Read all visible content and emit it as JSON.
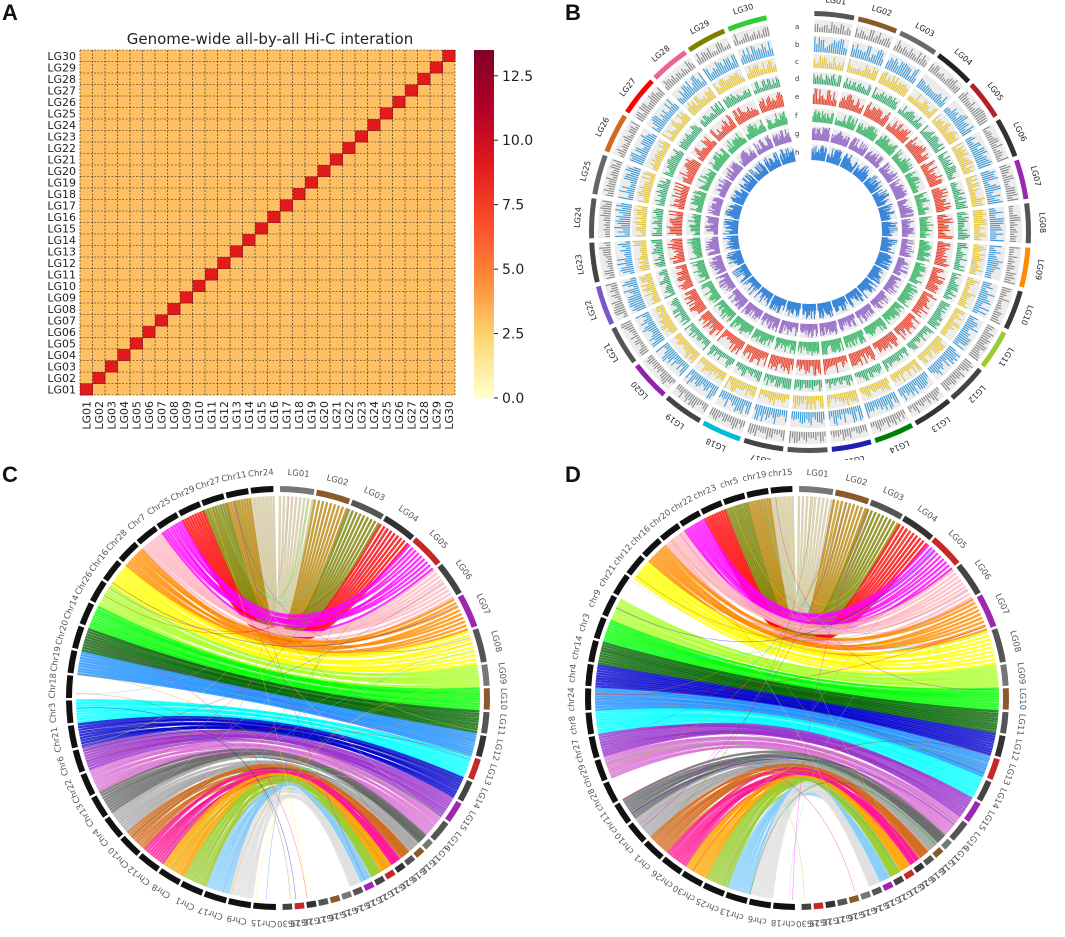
{
  "panels": {
    "A": "A",
    "B": "B",
    "C": "C",
    "D": "D"
  },
  "chart_data": [
    {
      "panel": "A",
      "type": "heatmap",
      "title": "Genome-wide all-by-all Hi-C interation",
      "x_categories": [
        "LG01",
        "LG02",
        "LG03",
        "LG04",
        "LG05",
        "LG06",
        "LG07",
        "LG08",
        "LG09",
        "LG10",
        "LG11",
        "LG12",
        "LG13",
        "LG14",
        "LG15",
        "LG16",
        "LG17",
        "LG18",
        "LG19",
        "LG20",
        "LG21",
        "LG22",
        "LG23",
        "LG24",
        "LG25",
        "LG26",
        "LG27",
        "LG28",
        "LG29",
        "LG30"
      ],
      "y_categories": [
        "LG01",
        "LG02",
        "LG03",
        "LG04",
        "LG05",
        "LG06",
        "LG07",
        "LG08",
        "LG09",
        "LG10",
        "LG11",
        "LG12",
        "LG13",
        "LG14",
        "LG15",
        "LG16",
        "LG17",
        "LG18",
        "LG19",
        "LG20",
        "LG21",
        "LG22",
        "LG23",
        "LG24",
        "LG25",
        "LG26",
        "LG27",
        "LG28",
        "LG29",
        "LG30"
      ],
      "diagonal_value": 9.0,
      "off_diagonal_value": 3.0,
      "colorbar": {
        "min": 0.0,
        "max": 13.5,
        "ticks": [
          "0.0",
          "2.5",
          "5.0",
          "7.5",
          "10.0",
          "12.5"
        ],
        "tick_values": [
          0,
          2.5,
          5,
          7.5,
          10,
          12.5
        ],
        "colors": [
          "#ffffcc",
          "#fed976",
          "#fd8d3c",
          "#fc4e2a",
          "#e31a1c",
          "#b10026",
          "#800026"
        ]
      }
    },
    {
      "panel": "B",
      "type": "circos",
      "chromosomes": [
        "LG01",
        "LG02",
        "LG03",
        "LG04",
        "LG05",
        "LG06",
        "LG07",
        "LG08",
        "LG09",
        "LG10",
        "LG11",
        "LG12",
        "LG13",
        "LG14",
        "LG15",
        "LG16",
        "LG17",
        "LG18",
        "LG19",
        "LG20",
        "LG21",
        "LG22",
        "LG23",
        "LG24",
        "LG25",
        "LG26",
        "LG27",
        "LG28",
        "LG29",
        "LG30"
      ],
      "chromosome_colors": [
        "#555555",
        "#8b5a2b",
        "#6a6a6a",
        "#222222",
        "#b22222",
        "#333333",
        "#9c27b0",
        "#555555",
        "#ff8c00",
        "#3a3a3a",
        "#9acd32",
        "#444444",
        "#333333",
        "#008000",
        "#1f1fb4",
        "#555555",
        "#444444",
        "#00bcd4",
        "#444444",
        "#8e24aa",
        "#555555",
        "#7e57c2",
        "#444444",
        "#555555",
        "#666666",
        "#d2691e",
        "#ff0000",
        "#f06292",
        "#808000",
        "#32cd32"
      ],
      "track_labels": [
        "a",
        "b",
        "c",
        "d",
        "e",
        "f",
        "g",
        "h"
      ],
      "track_colors": [
        "#888888",
        "#3a9ad9",
        "#e6c42a",
        "#2eaa6a",
        "#e8432e",
        "#3db86b",
        "#9a72c9",
        "#3a86d9"
      ]
    },
    {
      "panel": "C",
      "type": "circos",
      "right_labels": [
        "LG01",
        "LG02",
        "LG03",
        "LG04",
        "LG05",
        "LG06",
        "LG07",
        "LG08",
        "LG09",
        "LG10",
        "LG11",
        "LG12",
        "LG13",
        "LG14",
        "LG15",
        "LG16",
        "LG17",
        "LG18",
        "LG19",
        "LG20",
        "LG21",
        "LG22",
        "LG23",
        "LG24",
        "LG25",
        "LG26",
        "LG27",
        "LG28",
        "LG29",
        "LG30"
      ],
      "left_labels": [
        "Chr15",
        "Chr9",
        "Chr17",
        "Chr1",
        "Chr8",
        "Chr12",
        "Chr10",
        "Chr4",
        "Chr13",
        "Chr22",
        "Chr6",
        "Chr21",
        "Chr3",
        "Chr18",
        "Chr19",
        "Chr20",
        "Chr14",
        "Chr26",
        "Chr16",
        "Chr28",
        "Chr7",
        "Chr25",
        "Chr29",
        "Chr27",
        "Chr11",
        "Chr24"
      ],
      "link_colors": [
        "#d2c8a0",
        "#b8860b",
        "#808000",
        "#ff0000",
        "#ff00ff",
        "#ffb6c1",
        "#ff8c00",
        "#ffff00",
        "#adff2f",
        "#00ff00",
        "#006400",
        "#1e90ff",
        "#00ffff",
        "#0000cd",
        "#9932cc",
        "#da70d6",
        "#696969",
        "#a9a9a9",
        "#d2691e",
        "#ff1493",
        "#ffa500",
        "#9acd32",
        "#87cefa",
        "#e0e0e0"
      ]
    },
    {
      "panel": "D",
      "type": "circos",
      "right_labels": [
        "LG01",
        "LG02",
        "LG03",
        "LG04",
        "LG05",
        "LG06",
        "LG07",
        "LG08",
        "LG09",
        "LG10",
        "LG11",
        "LG12",
        "LG13",
        "LG14",
        "LG15",
        "LG16",
        "LG17",
        "LG18",
        "LG19",
        "LG20",
        "LG21",
        "LG22",
        "LG23",
        "LG24",
        "LG25",
        "LG26",
        "LG27",
        "LG28",
        "LG29",
        "LG30"
      ],
      "left_labels": [
        "chr18",
        "chr6",
        "chr13",
        "chr25",
        "chr30",
        "chr26",
        "chr1",
        "chr10",
        "chr11",
        "chr28",
        "chr29",
        "chr27",
        "chr8",
        "chr24",
        "chr4",
        "chr14",
        "chr3",
        "chr9",
        "chr21",
        "chr12",
        "chr16",
        "chr20",
        "chr22",
        "chr23",
        "chr5",
        "chr19",
        "chr15"
      ],
      "link_colors": [
        "#d2c8a0",
        "#b8860b",
        "#808000",
        "#ff0000",
        "#ff00ff",
        "#ffb6c1",
        "#ff8c00",
        "#ffff00",
        "#adff2f",
        "#00ff00",
        "#006400",
        "#0000cd",
        "#1e90ff",
        "#00ffff",
        "#9932cc",
        "#da70d6",
        "#696969",
        "#a9a9a9",
        "#d2691e",
        "#ff1493",
        "#ffa500",
        "#9acd32",
        "#87cefa",
        "#e0e0e0"
      ]
    }
  ]
}
